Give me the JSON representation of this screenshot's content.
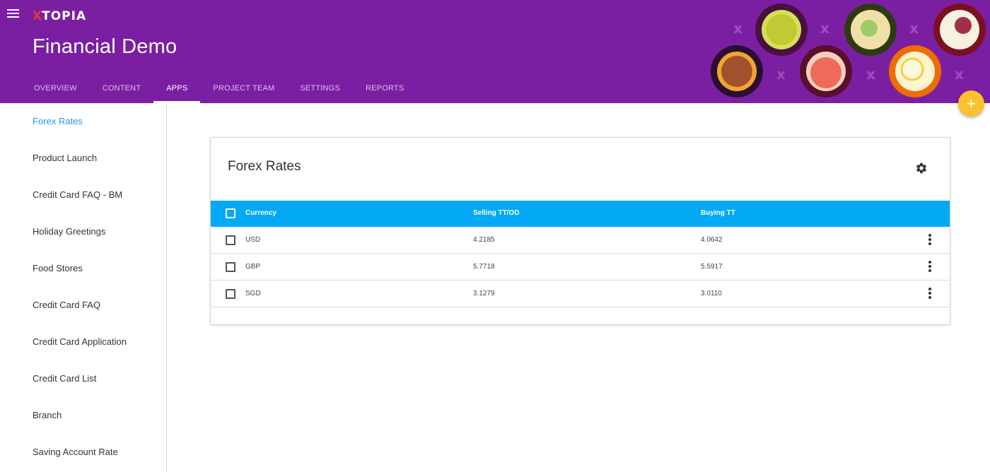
{
  "app": {
    "logo_text": "TOPIA",
    "logo_prefix": "X",
    "title": "Financial Demo"
  },
  "tabs": [
    {
      "label": "OVERVIEW"
    },
    {
      "label": "CONTENT"
    },
    {
      "label": "APPS",
      "active": true
    },
    {
      "label": "PROJECT TEAM"
    },
    {
      "label": "SETTINGS"
    },
    {
      "label": "REPORTS"
    }
  ],
  "sidebar": {
    "items": [
      {
        "label": "Forex Rates",
        "active": true
      },
      {
        "label": "Product Launch"
      },
      {
        "label": "Credit Card FAQ - BM"
      },
      {
        "label": "Holiday Greetings"
      },
      {
        "label": "Food Stores"
      },
      {
        "label": "Credit Card FAQ"
      },
      {
        "label": "Credit Card Application"
      },
      {
        "label": "Credit Card List"
      },
      {
        "label": "Branch"
      },
      {
        "label": "Saving Account Rate"
      }
    ]
  },
  "card": {
    "title": "Forex Rates",
    "settings_icon": "gear-icon",
    "columns": [
      "Currency",
      "Selling TT/OD",
      "Buying TT"
    ],
    "rows": [
      {
        "currency": "USD",
        "selling": "4.2185",
        "buying": "4.0642"
      },
      {
        "currency": "GBP",
        "selling": "5.7718",
        "buying": "5.5917"
      },
      {
        "currency": "SGD",
        "selling": "3.1279",
        "buying": "3.0110"
      }
    ]
  },
  "fab": {
    "label": "+"
  },
  "colors": {
    "header": "#7b1fa2",
    "table_header": "#03a9f4",
    "active_link": "#2196f3",
    "fab": "#fbc02d"
  }
}
